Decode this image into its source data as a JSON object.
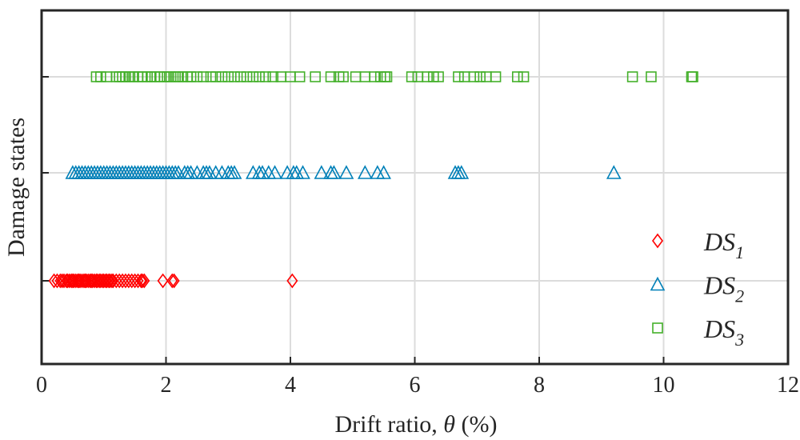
{
  "chart_data": {
    "type": "scatter",
    "title": "",
    "xlabel": "Drift ratio, ",
    "xlabel_symbol": "θ",
    "xlabel_unit": " (%)",
    "ylabel": "Damage states",
    "xlim": [
      0,
      12
    ],
    "xticks": [
      0,
      2,
      4,
      6,
      8,
      10,
      12
    ],
    "xtick_labels": [
      "0",
      "2",
      "4",
      "6",
      "8",
      "10",
      "12"
    ],
    "grid": true,
    "legend_placement": "bottom-right",
    "categories": [
      "DS1",
      "DS2",
      "DS3"
    ],
    "series": [
      {
        "name": "DS",
        "sub": "1",
        "level": 1,
        "marker": "diamond",
        "color": "#ff0000",
        "x": [
          0.2,
          0.25,
          0.3,
          0.33,
          0.36,
          0.4,
          0.42,
          0.45,
          0.48,
          0.5,
          0.52,
          0.55,
          0.58,
          0.6,
          0.62,
          0.65,
          0.68,
          0.7,
          0.72,
          0.75,
          0.78,
          0.8,
          0.82,
          0.85,
          0.88,
          0.9,
          0.93,
          0.95,
          0.98,
          1.0,
          1.03,
          1.05,
          1.08,
          1.1,
          1.13,
          1.15,
          1.2,
          1.25,
          1.3,
          1.35,
          1.4,
          1.45,
          1.5,
          1.55,
          1.6,
          1.62,
          1.65,
          1.95,
          2.1,
          2.13,
          4.03
        ]
      },
      {
        "name": "DS",
        "sub": "2",
        "level": 2,
        "marker": "triangle",
        "color": "#0080b8",
        "x": [
          0.5,
          0.55,
          0.6,
          0.65,
          0.7,
          0.75,
          0.8,
          0.85,
          0.9,
          0.95,
          1.0,
          1.05,
          1.1,
          1.15,
          1.2,
          1.25,
          1.3,
          1.35,
          1.4,
          1.45,
          1.5,
          1.55,
          1.6,
          1.65,
          1.7,
          1.75,
          1.8,
          1.85,
          1.9,
          1.95,
          2.0,
          2.05,
          2.1,
          2.15,
          2.2,
          2.3,
          2.35,
          2.4,
          2.5,
          2.6,
          2.65,
          2.7,
          2.8,
          2.9,
          3.0,
          3.05,
          3.1,
          3.4,
          3.5,
          3.55,
          3.65,
          3.75,
          3.95,
          4.05,
          4.1,
          4.2,
          4.5,
          4.65,
          4.7,
          4.9,
          5.2,
          5.4,
          5.5,
          6.65,
          6.7,
          6.75,
          9.2
        ]
      },
      {
        "name": "DS",
        "sub": "3",
        "level": 3,
        "marker": "square",
        "color": "#44b02a",
        "x": [
          0.88,
          0.95,
          1.05,
          1.2,
          1.25,
          1.3,
          1.35,
          1.42,
          1.48,
          1.55,
          1.62,
          1.7,
          1.76,
          1.82,
          1.9,
          1.97,
          2.02,
          2.08,
          2.15,
          2.2,
          2.27,
          2.34,
          2.4,
          2.5,
          2.6,
          2.72,
          2.8,
          2.9,
          3.0,
          3.1,
          3.2,
          3.3,
          3.4,
          3.5,
          3.6,
          3.72,
          3.85,
          4.0,
          4.15,
          4.4,
          4.65,
          4.78,
          4.85,
          5.05,
          5.2,
          5.35,
          5.45,
          5.52,
          5.55,
          5.95,
          6.05,
          6.2,
          6.3,
          6.38,
          6.7,
          6.8,
          6.95,
          7.05,
          7.15,
          7.3,
          7.65,
          7.75,
          9.5,
          9.8,
          10.45,
          10.47
        ]
      }
    ]
  }
}
